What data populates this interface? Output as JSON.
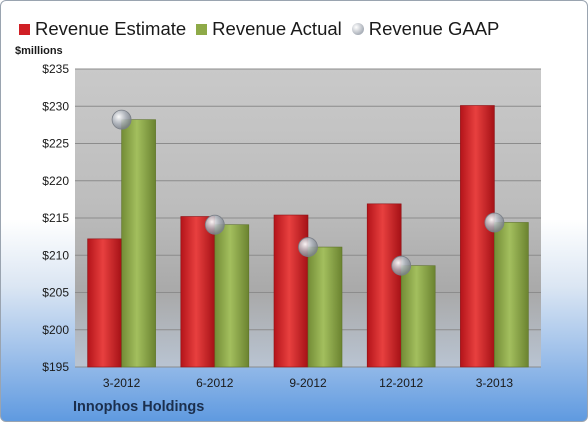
{
  "legend": {
    "estimate_label": "Revenue Estimate",
    "actual_label": "Revenue Actual",
    "gaap_label": "Revenue GAAP"
  },
  "y_unit_label": "$millions",
  "company_label": "Innophos Holdings",
  "colors": {
    "estimate": "#d01f25",
    "actual": "#8eaa48",
    "gaap": "#a9afb8"
  },
  "chart_data": {
    "type": "bar",
    "categories": [
      "3-2012",
      "6-2012",
      "9-2012",
      "12-2012",
      "3-2013"
    ],
    "series": [
      {
        "name": "Revenue Estimate",
        "values": [
          212.2,
          215.2,
          215.4,
          216.9,
          230.1
        ]
      },
      {
        "name": "Revenue Actual",
        "values": [
          228.2,
          214.1,
          211.1,
          208.6,
          214.4
        ]
      },
      {
        "name": "Revenue GAAP",
        "marker": "circle",
        "values": [
          228.2,
          214.1,
          211.1,
          208.6,
          214.4
        ]
      }
    ],
    "ylim": [
      195,
      235
    ],
    "yticks": [
      195,
      200,
      205,
      210,
      215,
      220,
      225,
      230,
      235
    ],
    "ytick_labels": [
      "$195",
      "$200",
      "$205",
      "$210",
      "$215",
      "$220",
      "$225",
      "$230",
      "$235"
    ],
    "ylabel": "$millions",
    "grid": true,
    "legend_position": "top"
  }
}
